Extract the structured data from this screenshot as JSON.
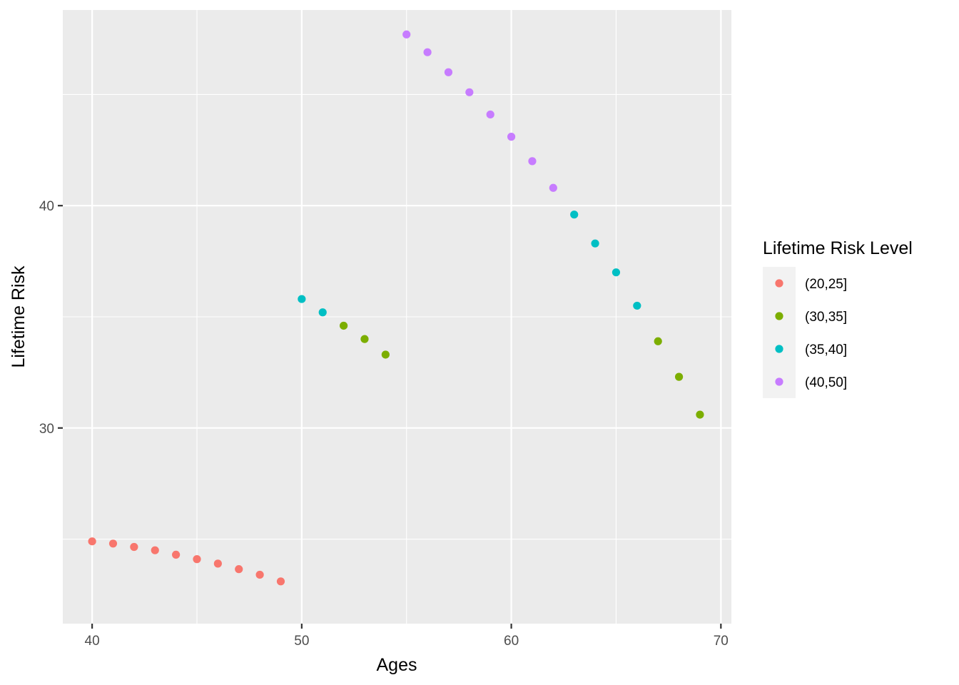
{
  "chart_data": {
    "type": "scatter",
    "title": "",
    "xlabel": "Ages",
    "ylabel": "Lifetime Risk",
    "xlim": [
      38.6,
      70.5
    ],
    "ylim": [
      21.2,
      48.8
    ],
    "x_ticks": [
      40,
      50,
      60,
      70
    ],
    "x_tick_labels": [
      "40",
      "50",
      "60",
      "70"
    ],
    "y_ticks": [
      30,
      40
    ],
    "y_tick_labels": [
      "30",
      "40"
    ],
    "y_minor_gridlines": [
      25,
      35,
      45
    ],
    "grid": true,
    "legend": {
      "title": "Lifetime Risk Level",
      "position": "right",
      "entries": [
        "(20,25]",
        "(30,35]",
        "(35,40]",
        "(40,50]"
      ]
    },
    "colors": {
      "(20,25]": "#F8766D",
      "(30,35]": "#7CAE00",
      "(35,40]": "#00BFC4",
      "(40,50]": "#C77CFF"
    },
    "series": [
      {
        "name": "(20,25]",
        "x": [
          40,
          41,
          42,
          43,
          44,
          45,
          46,
          47,
          48,
          49
        ],
        "y": [
          24.9,
          24.8,
          24.65,
          24.5,
          24.3,
          24.1,
          23.9,
          23.65,
          23.4,
          23.1
        ]
      },
      {
        "name": "(30,35]",
        "x": [
          52,
          53,
          54,
          67,
          68,
          69
        ],
        "y": [
          34.6,
          34.0,
          33.3,
          33.9,
          32.3,
          30.6
        ]
      },
      {
        "name": "(35,40]",
        "x": [
          50,
          51,
          63,
          64,
          65,
          66
        ],
        "y": [
          35.8,
          35.2,
          39.6,
          38.3,
          37.0,
          35.5
        ]
      },
      {
        "name": "(40,50]",
        "x": [
          55,
          56,
          57,
          58,
          59,
          60,
          61,
          62
        ],
        "y": [
          47.7,
          46.9,
          46.0,
          45.1,
          44.1,
          43.1,
          42.0,
          40.8
        ]
      }
    ]
  }
}
